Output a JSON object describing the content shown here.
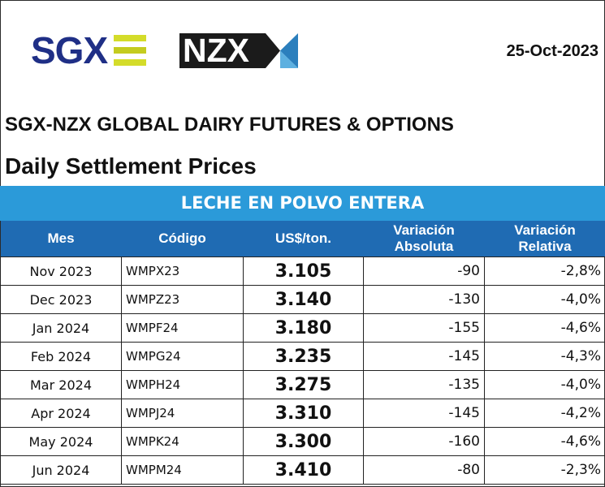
{
  "header": {
    "logo_sgx": "SGX",
    "logo_nzx": "NZX",
    "date": "25-Oct-2023",
    "title": "SGX-NZX GLOBAL DAIRY FUTURES & OPTIONS",
    "subtitle": "Daily Settlement Prices"
  },
  "colors": {
    "band": "#2b9ad9",
    "header_row": "#1f6bb3",
    "sgx_blue": "#1f2f86",
    "sgx_green": "#d4dc2a"
  },
  "table": {
    "product": "LECHE EN POLVO ENTERA",
    "columns": [
      "Mes",
      "Código",
      "US$/ton.",
      "Variación Absoluta",
      "Variación Relativa"
    ],
    "rows": [
      [
        "Nov 2023",
        "WMPX23",
        "3.105",
        "-90",
        "-2,8%"
      ],
      [
        "Dec 2023",
        "WMPZ23",
        "3.140",
        "-130",
        "-4,0%"
      ],
      [
        "Jan 2024",
        "WMPF24",
        "3.180",
        "-155",
        "-4,6%"
      ],
      [
        "Feb 2024",
        "WMPG24",
        "3.235",
        "-145",
        "-4,3%"
      ],
      [
        "Mar 2024",
        "WMPH24",
        "3.275",
        "-135",
        "-4,0%"
      ],
      [
        "Apr 2024",
        "WMPJ24",
        "3.310",
        "-145",
        "-4,2%"
      ],
      [
        "May 2024",
        "WMPK24",
        "3.300",
        "-160",
        "-4,6%"
      ],
      [
        "Jun 2024",
        "WMPM24",
        "3.410",
        "-80",
        "-2,3%"
      ]
    ]
  }
}
